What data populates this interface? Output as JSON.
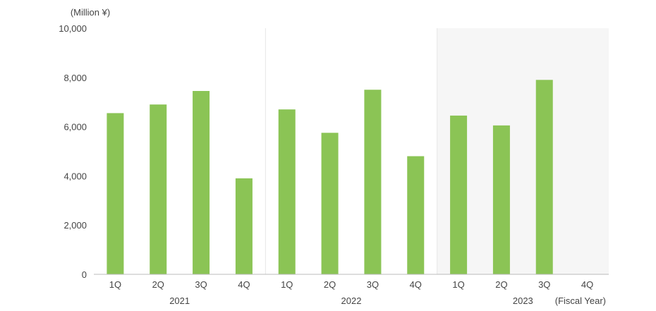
{
  "chart_data": {
    "type": "bar",
    "y_unit_label": "(Million ¥)",
    "x_unit_label": "(Fiscal Year)",
    "ylim": [
      0,
      10000
    ],
    "y_ticks": [
      "0",
      "2,000",
      "4,000",
      "6,000",
      "8,000",
      "10,000"
    ],
    "y_tick_values": [
      0,
      2000,
      4000,
      6000,
      8000,
      10000
    ],
    "grid": false,
    "groups": [
      {
        "year": "2021",
        "quarters": [
          "1Q",
          "2Q",
          "3Q",
          "4Q"
        ],
        "values": [
          6550,
          6900,
          7450,
          3900
        ]
      },
      {
        "year": "2022",
        "quarters": [
          "1Q",
          "2Q",
          "3Q",
          "4Q"
        ],
        "values": [
          6700,
          5750,
          7500,
          4800
        ]
      },
      {
        "year": "2023",
        "quarters": [
          "1Q",
          "2Q",
          "3Q",
          "4Q"
        ],
        "values": [
          6450,
          6050,
          7900,
          null
        ]
      }
    ],
    "colors": {
      "bar": "#8bc455",
      "axis": "#bbbbbb",
      "divider": "#e6e6e6",
      "highlight_bg": "#f6f6f6"
    }
  }
}
